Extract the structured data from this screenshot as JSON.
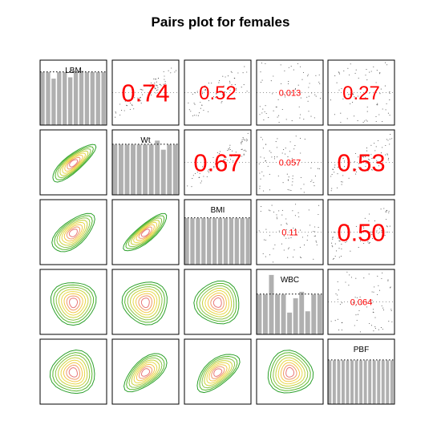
{
  "title": "Pairs plot for females",
  "chart_data": {
    "type": "pairs",
    "title": "Pairs plot for females",
    "variables": [
      "LBM",
      "Wt",
      "BMI",
      "WBC",
      "PBF"
    ],
    "upper": [
      {
        "row": 0,
        "col": 1,
        "value": "0.74",
        "size": "large"
      },
      {
        "row": 0,
        "col": 2,
        "value": "0.52",
        "size": "medium"
      },
      {
        "row": 0,
        "col": 3,
        "value": "0.013",
        "size": "small"
      },
      {
        "row": 0,
        "col": 4,
        "value": "0.27",
        "size": "medium"
      },
      {
        "row": 1,
        "col": 2,
        "value": "0.67",
        "size": "large"
      },
      {
        "row": 1,
        "col": 3,
        "value": "0.057",
        "size": "small"
      },
      {
        "row": 1,
        "col": 4,
        "value": "0.53",
        "size": "large"
      },
      {
        "row": 2,
        "col": 3,
        "value": "0.11",
        "size": "small"
      },
      {
        "row": 2,
        "col": 4,
        "value": "0.50",
        "size": "large"
      },
      {
        "row": 3,
        "col": 4,
        "value": "0.064",
        "size": "small"
      }
    ],
    "diagonal": [
      {
        "label": "LBM",
        "heights": [
          0.82,
          0.82,
          0.72,
          0.82,
          0.82,
          0.74,
          0.82,
          0.84,
          0.82,
          0.82,
          0.82,
          0.82
        ],
        "ref": 0.82
      },
      {
        "label": "Wt",
        "heights": [
          0.78,
          0.78,
          0.78,
          0.78,
          0.78,
          0.78,
          0.78,
          0.84,
          0.7,
          0.78,
          0.78
        ],
        "ref": 0.78
      },
      {
        "label": "BMI",
        "heights": [
          0.72,
          0.72,
          0.72,
          0.72,
          0.72,
          0.72,
          0.72,
          0.72,
          0.72,
          0.72,
          0.72,
          0.72
        ],
        "ref": 0.72
      },
      {
        "label": "WBC",
        "heights": [
          0.62,
          0.62,
          0.92,
          0.62,
          0.62,
          0.34,
          0.56,
          0.66,
          0.36,
          0.62,
          0.62
        ],
        "ref": 0.62
      },
      {
        "label": "PBF",
        "heights": [
          0.68,
          0.68,
          0.68,
          0.68,
          0.68,
          0.68,
          0.68,
          0.68,
          0.68,
          0.68,
          0.68,
          0.68,
          0.68,
          0.68,
          0.68
        ],
        "ref": 0.68
      }
    ],
    "lower": [
      {
        "row": 1,
        "col": 0,
        "correlation": 0.74
      },
      {
        "row": 2,
        "col": 0,
        "correlation": 0.52
      },
      {
        "row": 2,
        "col": 1,
        "correlation": 0.67
      },
      {
        "row": 3,
        "col": 0,
        "correlation": 0.013
      },
      {
        "row": 3,
        "col": 1,
        "correlation": 0.057
      },
      {
        "row": 3,
        "col": 2,
        "correlation": 0.11
      },
      {
        "row": 4,
        "col": 0,
        "correlation": 0.27
      },
      {
        "row": 4,
        "col": 1,
        "correlation": 0.53
      },
      {
        "row": 4,
        "col": 2,
        "correlation": 0.5
      },
      {
        "row": 4,
        "col": 3,
        "correlation": 0.064
      }
    ],
    "contour_colors": [
      "#2ca02c",
      "#55b82a",
      "#8bc34a",
      "#c8d23c",
      "#e8d84a",
      "#f2c84b",
      "#ef9a6a",
      "#e8787a"
    ],
    "histogram_color": "#b0b0b0",
    "correlation_color": "#ff0000"
  }
}
